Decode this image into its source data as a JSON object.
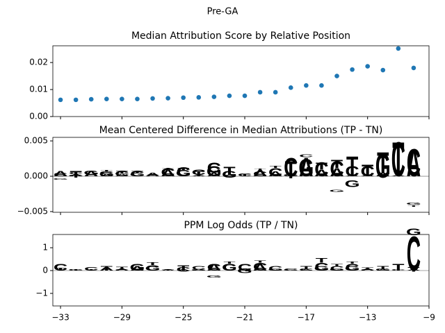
{
  "title": "Pre-GA",
  "chart_data": [
    {
      "type": "scatter",
      "title": "Median Attribution Score by Relative Position",
      "color": "#1f77b4",
      "x": [
        -33,
        -32,
        -31,
        -30,
        -29,
        -28,
        -27,
        -26,
        -25,
        -24,
        -23,
        -22,
        -21,
        -20,
        -19,
        -18,
        -17,
        -16,
        -15,
        -14,
        -13,
        -12,
        -11,
        -10
      ],
      "values": [
        0.0062,
        0.0062,
        0.0064,
        0.0065,
        0.0065,
        0.0065,
        0.0067,
        0.0068,
        0.007,
        0.0071,
        0.0073,
        0.0077,
        0.0077,
        0.009,
        0.009,
        0.0107,
        0.0115,
        0.0115,
        0.015,
        0.0174,
        0.0186,
        0.0172,
        0.0252,
        0.018
      ],
      "xlim": [
        -33.5,
        -9
      ],
      "ylim": [
        0,
        0.0262
      ],
      "yticks": [
        {
          "value": 0,
          "label": "0.00"
        },
        {
          "value": 0.01,
          "label": "0.01"
        },
        {
          "value": 0.02,
          "label": "0.02"
        }
      ]
    },
    {
      "type": "logo",
      "title": "Mean Centered Difference in Median Attributions (TP - TN)",
      "x": [
        -33,
        -32,
        -31,
        -30,
        -29,
        -28,
        -27,
        -26,
        -25,
        -24,
        -23,
        -22,
        -21,
        -20,
        -19,
        -18,
        -17,
        -16,
        -15,
        -14,
        -13,
        -12,
        -11,
        -10
      ],
      "series": [
        {
          "name": "A",
          "color": "#008000",
          "values": [
            0.0008,
            0.0003,
            -0.0008,
            0.0003,
            0.0003,
            0,
            -0.0005,
            0.001,
            0,
            0.0002,
            0.0005,
            0.0002,
            0,
            0.0009,
            -0.0007,
            0,
            0.0027,
            0.001,
            0.0012,
            0.0002,
            0.0002,
            0.0005,
            0.0002,
            -0.004
          ]
        },
        {
          "name": "C",
          "color": "#0000ff",
          "values": [
            -0.0005,
            0.0003,
            0.0002,
            0.0004,
            -0.0008,
            -0.0008,
            0.0001,
            -0.0012,
            -0.0013,
            0.0008,
            0.0015,
            -0.0002,
            0.0004,
            -0.0007,
            0.0012,
            0.0027,
            0.0004,
            -0.002,
            -0.0022,
            -0.0015,
            -0.0015,
            -0.0002,
            -0.005,
            0.004
          ]
        },
        {
          "name": "G",
          "color": "#ffa500",
          "values": [
            -0.0002,
            -0.0002,
            0.0006,
            -0.0006,
            0.0001,
            0.0005,
            0,
            0,
            0.0009,
            0,
            -0.0015,
            -0.001,
            0,
            0,
            0,
            -0.0003,
            -0.0025,
            0,
            -0.0003,
            -0.001,
            0,
            -0.0035,
            0,
            -0.0003
          ]
        },
        {
          "name": "T",
          "color": "#ff0000",
          "values": [
            0,
            -0.001,
            0,
            0.0002,
            0.0004,
            0.0003,
            0.0002,
            0.0002,
            0.0003,
            -0.0008,
            0,
            0.0012,
            -0.0003,
            0.0002,
            0.0003,
            -0.0025,
            0,
            0.001,
            0.0012,
            0.0027,
            0.0015,
            0.003,
            0.0048,
            -0.0002
          ]
        }
      ],
      "xlim": [
        -33.5,
        -9
      ],
      "ylim": [
        -0.0051,
        0.0055
      ],
      "yticks": [
        {
          "value": 0.005,
          "label": "0.005"
        },
        {
          "value": 0,
          "label": "0.000"
        },
        {
          "value": -0.005,
          "label": "−0.005"
        }
      ]
    },
    {
      "type": "logo",
      "title": "PPM Log Odds (TP / TN)",
      "x": [
        -33,
        -32,
        -31,
        -30,
        -29,
        -28,
        -27,
        -26,
        -25,
        -24,
        -23,
        -22,
        -21,
        -20,
        -19,
        -18,
        -17,
        -16,
        -15,
        -14,
        -13,
        -12,
        -11,
        -10
      ],
      "series": [
        {
          "name": "A",
          "color": "#008000",
          "values": [
            0,
            0,
            0,
            -0.15,
            -0.1,
            0.2,
            0,
            0.05,
            -0.05,
            0.05,
            0.3,
            0,
            -0.1,
            -0.3,
            0,
            0,
            0.05,
            0,
            0,
            0,
            -0.1,
            0.05,
            0,
            -0.05
          ]
        },
        {
          "name": "C",
          "color": "#0000ff",
          "values": [
            -0.3,
            0,
            -0.15,
            0,
            0.05,
            0,
            0.25,
            0,
            -0.2,
            0.15,
            -0.3,
            0.3,
            0.3,
            0.35,
            0.2,
            0.1,
            -0.1,
            0.35,
            0.2,
            0.3,
            0.05,
            0,
            0.05,
            1.55
          ]
        },
        {
          "name": "G",
          "color": "#ffa500",
          "values": [
            0,
            -0.05,
            0,
            0,
            0,
            -0.3,
            -0.2,
            0,
            0,
            -0.05,
            -0.1,
            -0.3,
            -0.2,
            0,
            -0.1,
            -0.05,
            0,
            -0.2,
            -0.1,
            -0.2,
            0,
            -0.1,
            0,
            0.3
          ]
        },
        {
          "name": "T",
          "color": "#ff0000",
          "values": [
            0.12,
            0.05,
            0.05,
            0.2,
            0.12,
            0,
            0.12,
            -0.05,
            0.25,
            0,
            0,
            0.1,
            0,
            0.1,
            0,
            0,
            0.15,
            0.2,
            0.1,
            0.1,
            0.1,
            0.15,
            -0.3,
            -0.2
          ]
        }
      ],
      "xlim": [
        -33.5,
        -9
      ],
      "ylim": [
        -1.55,
        1.58
      ],
      "yticks": [
        1,
        0,
        {
          "value": -1,
          "label": "−1"
        }
      ],
      "xticks": [
        {
          "value": -33,
          "label": "−33"
        },
        {
          "value": -29,
          "label": "−29"
        },
        {
          "value": -25,
          "label": "−25"
        },
        {
          "value": -21,
          "label": "−21"
        },
        {
          "value": -17,
          "label": "−17"
        },
        {
          "value": -13,
          "label": "−13"
        },
        {
          "value": -9,
          "label": "−9"
        }
      ]
    }
  ]
}
